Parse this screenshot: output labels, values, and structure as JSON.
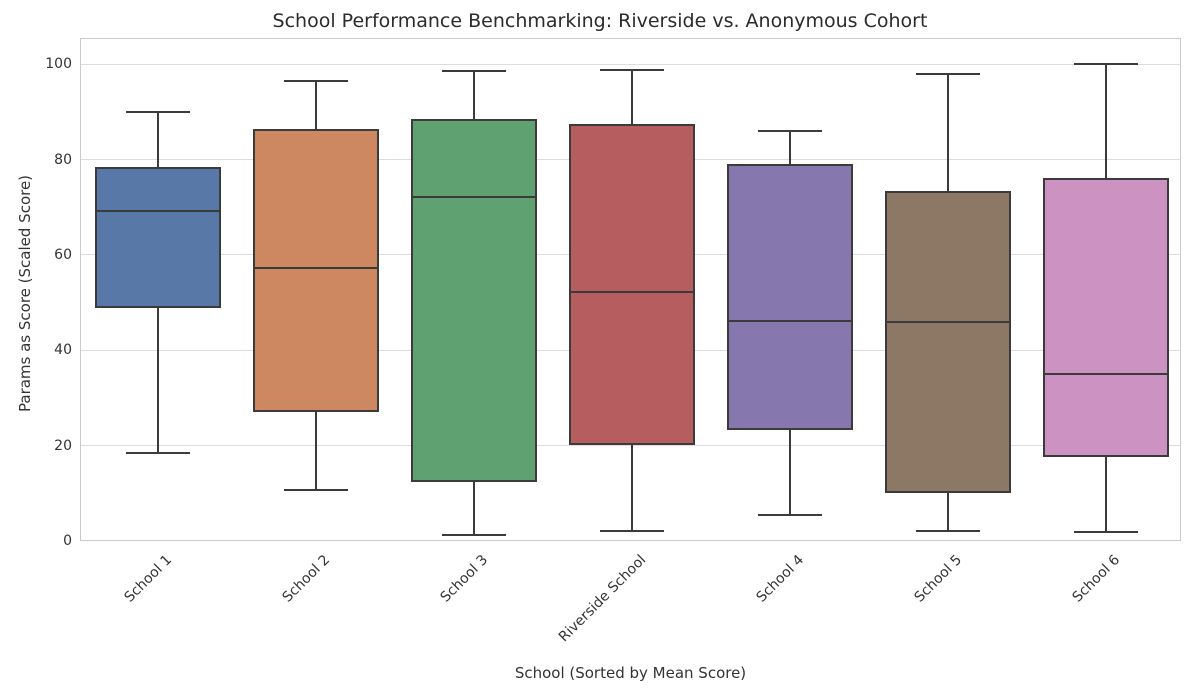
{
  "chart_data": {
    "type": "box",
    "title": "School Performance Benchmarking: Riverside vs. Anonymous Cohort",
    "xlabel": "School (Sorted by Mean Score)",
    "ylabel": "Params as Score (Scaled Score)",
    "ylim": [
      0,
      105.5
    ],
    "yticks": [
      0,
      20,
      40,
      60,
      80,
      100
    ],
    "grid": "horizontal",
    "legend": "none",
    "x_tick_rotation_deg": 45,
    "edge_color": "#3b3b3b",
    "categories": [
      "School 1",
      "School 2",
      "School 3",
      "Riverside School",
      "School 4",
      "School 5",
      "School 6"
    ],
    "series": [
      {
        "label": "School 1",
        "color": "#5878A8",
        "whisker_low": 18.5,
        "q1": 48.8,
        "median": 69.2,
        "q3": 78.5,
        "whisker_high": 89.9
      },
      {
        "label": "School 2",
        "color": "#CD8862",
        "whisker_low": 10.7,
        "q1": 27.1,
        "median": 57.2,
        "q3": 86.4,
        "whisker_high": 96.5
      },
      {
        "label": "School 3",
        "color": "#5FA170",
        "whisker_low": 1.2,
        "q1": 12.4,
        "median": 72.2,
        "q3": 88.6,
        "whisker_high": 98.5
      },
      {
        "label": "Riverside School",
        "color": "#B65D60",
        "whisker_low": 2.1,
        "q1": 20.1,
        "median": 52.3,
        "q3": 87.4,
        "whisker_high": 98.8
      },
      {
        "label": "School 4",
        "color": "#8678AE",
        "whisker_low": 5.4,
        "q1": 23.3,
        "median": 46.2,
        "q3": 79.0,
        "whisker_high": 86.0
      },
      {
        "label": "School 5",
        "color": "#8D7865",
        "whisker_low": 2.2,
        "q1": 10.0,
        "median": 46.0,
        "q3": 73.5,
        "whisker_high": 97.9
      },
      {
        "label": "School 6",
        "color": "#CC93C2",
        "whisker_low": 1.8,
        "q1": 17.7,
        "median": 35.0,
        "q3": 76.2,
        "whisker_high": 100.0
      }
    ]
  }
}
